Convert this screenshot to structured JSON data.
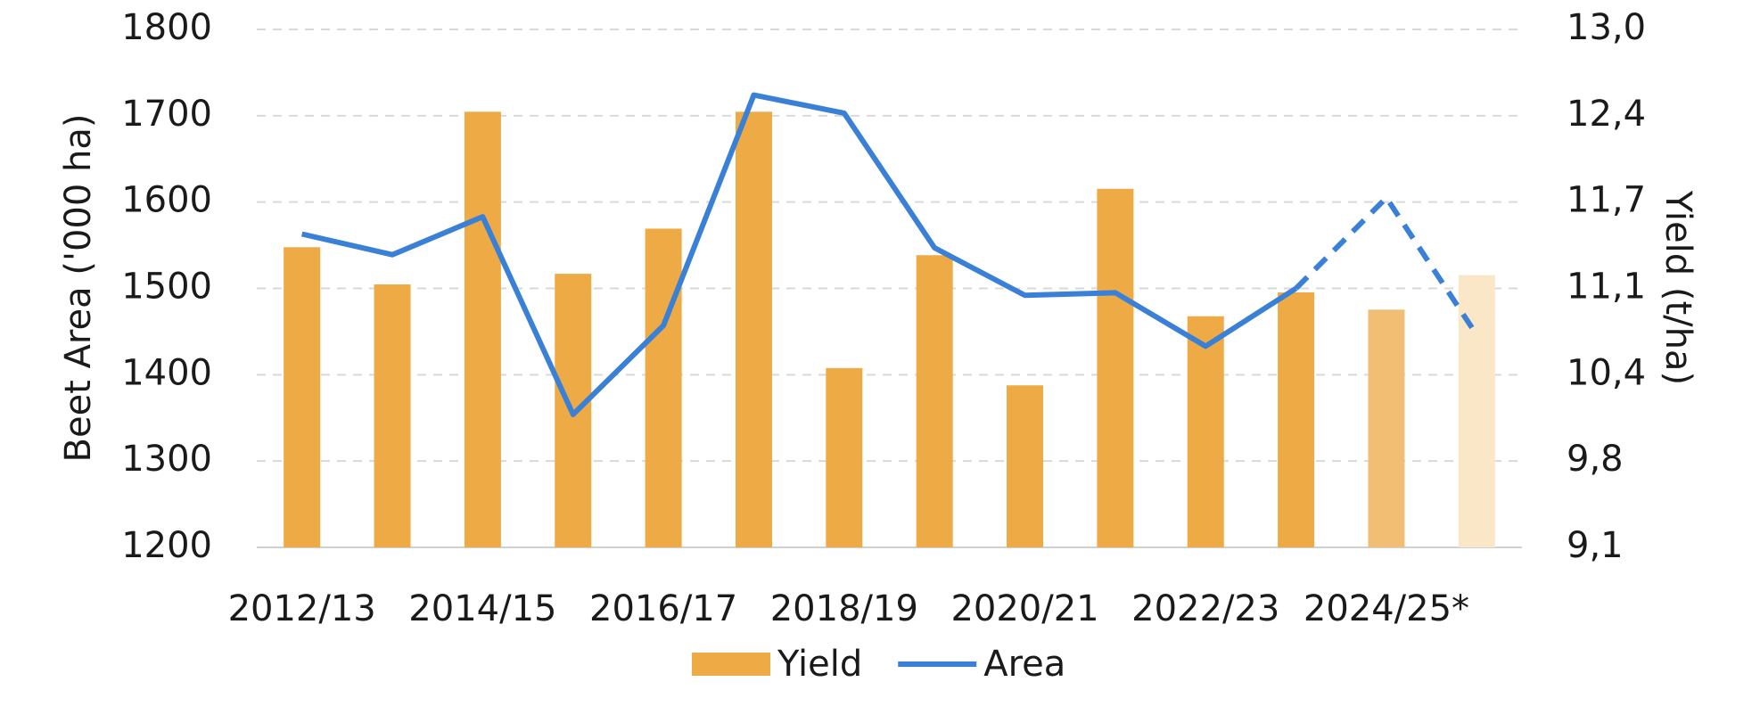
{
  "chart_data": {
    "type": "bar-line",
    "categories": [
      "2012/13",
      null,
      "2014/15",
      null,
      "2016/17",
      null,
      "2018/19",
      null,
      "2020/21",
      null,
      "2022/23",
      null,
      "2024/25*",
      null
    ],
    "series": [
      {
        "name": "Yield",
        "type": "bar",
        "axis": "y2",
        "color": "#eeaa45",
        "colors": [
          "#eeaa45",
          "#eeaa45",
          "#eeaa45",
          "#eeaa45",
          "#eeaa45",
          "#eeaa45",
          "#eeaa45",
          "#eeaa45",
          "#eeaa45",
          "#eeaa45",
          "#eeaa45",
          "#eeaa45",
          "#f2be73",
          "#f9e7c8"
        ],
        "values": [
          11.36,
          11.08,
          12.38,
          11.16,
          11.5,
          12.38,
          10.45,
          11.3,
          10.32,
          11.8,
          10.84,
          11.02,
          10.89,
          11.15
        ]
      },
      {
        "name": "Area",
        "type": "line",
        "color": "#3a80d6",
        "dashed_from": 11,
        "values": [
          1563,
          1539,
          1583,
          1354,
          1457,
          1724,
          1703,
          1547,
          1492,
          1495,
          1433,
          1500,
          1605,
          1446
        ]
      }
    ],
    "ylabel": "Beet Area ('000 ha)",
    "y2label": "Yield (t/ha)",
    "ylim": [
      1200,
      1800
    ],
    "yticks": [
      1200,
      1300,
      1400,
      1500,
      1600,
      1700,
      1800
    ],
    "y2lim": [
      9.1,
      13.0
    ],
    "y2ticks": [
      {
        "value": 9.1,
        "label": "9,1"
      },
      {
        "value": 9.75,
        "label": "9,8"
      },
      {
        "value": 10.4,
        "label": "10,4"
      },
      {
        "value": 11.05,
        "label": "11,1"
      },
      {
        "value": 11.7,
        "label": "11,7"
      },
      {
        "value": 12.35,
        "label": "12,4"
      },
      {
        "value": 13.0,
        "label": "13,0"
      }
    ],
    "grid": true,
    "legend": "bottom"
  }
}
